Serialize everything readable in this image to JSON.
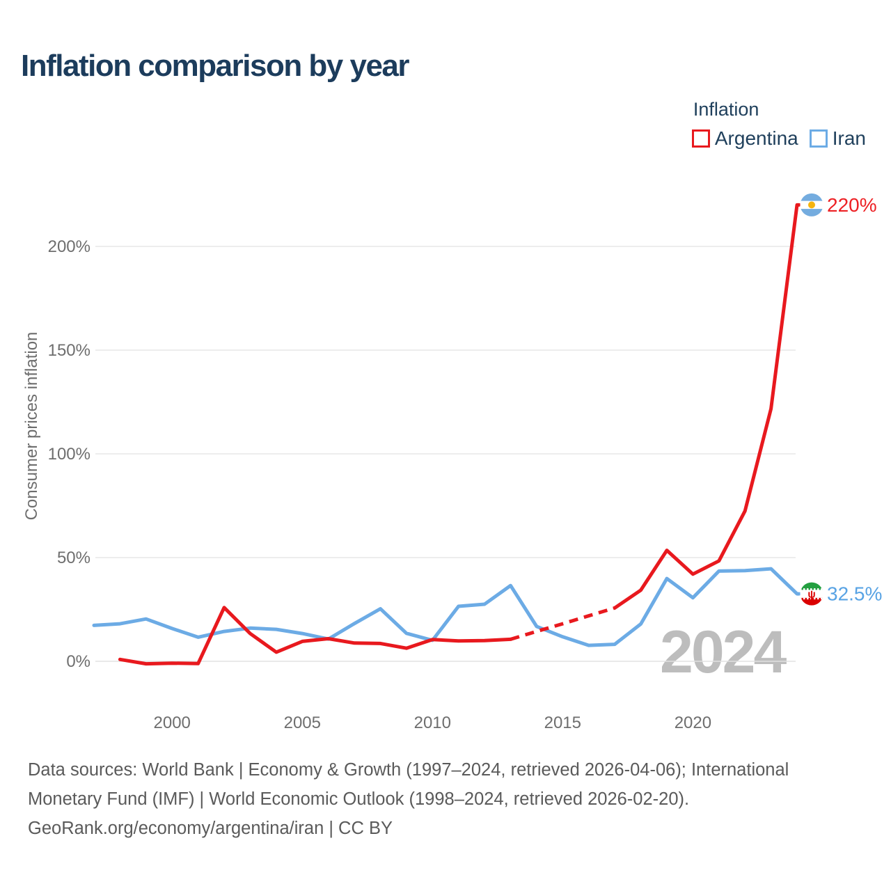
{
  "page": {
    "title": "Inflation comparison by year"
  },
  "legend": {
    "title": "Inflation",
    "items": [
      {
        "label": "Argentina",
        "color": "#e8191e"
      },
      {
        "label": "Iran",
        "color": "#6cabe5"
      }
    ]
  },
  "chart_data": {
    "type": "line",
    "title": "Inflation comparison by year",
    "ylabel": "Consumer prices inflation",
    "xlabel": "",
    "grid": true,
    "legend_position": "top-right",
    "year_watermark": "2024",
    "x": [
      1997,
      1998,
      1999,
      2000,
      2001,
      2002,
      2003,
      2004,
      2005,
      2006,
      2007,
      2008,
      2009,
      2010,
      2011,
      2012,
      2013,
      2014,
      2015,
      2016,
      2017,
      2018,
      2019,
      2020,
      2021,
      2022,
      2023,
      2024
    ],
    "series": [
      {
        "name": "Argentina",
        "color": "#e8191e",
        "label_color": "#ed2024",
        "end_label": "220%",
        "flag": "argentina",
        "dashed_year_range": [
          2013,
          2017
        ],
        "values": [
          null,
          0.9,
          -1.2,
          -0.9,
          -1.1,
          25.9,
          13.4,
          4.4,
          9.6,
          10.9,
          8.8,
          8.6,
          6.3,
          10.5,
          9.8,
          10.0,
          10.6,
          14.4,
          18.1,
          21.9,
          25.7,
          34.3,
          53.5,
          42.0,
          48.4,
          72.4,
          121.7,
          220.0
        ]
      },
      {
        "name": "Iran",
        "color": "#6cabe5",
        "label_color": "#58a3e4",
        "end_label": "32.5%",
        "flag": "iran",
        "values": [
          17.3,
          18.1,
          20.4,
          15.8,
          11.6,
          14.4,
          16.0,
          15.4,
          13.4,
          10.7,
          18.2,
          25.3,
          13.5,
          10.1,
          26.5,
          27.5,
          36.5,
          16.8,
          11.8,
          7.7,
          8.2,
          18.0,
          39.9,
          30.6,
          43.5,
          43.7,
          44.6,
          32.5
        ]
      }
    ],
    "y_ticks": [
      {
        "value": 0,
        "label": "0%"
      },
      {
        "value": 50,
        "label": "50%"
      },
      {
        "value": 100,
        "label": "100%"
      },
      {
        "value": 150,
        "label": "150%"
      },
      {
        "value": 200,
        "label": "200%"
      }
    ],
    "x_ticks": [
      2000,
      2005,
      2010,
      2015,
      2020
    ],
    "ylim": [
      -12,
      232
    ],
    "xlim": [
      1997,
      2024
    ]
  },
  "footer": {
    "lines": [
      "Data sources: World Bank | Economy & Growth (1997–2024, retrieved 2026-04-06); International",
      "Monetary Fund (IMF) | World Economic Outlook (1998–2024, retrieved 2026-02-20).",
      "GeoRank.org/economy/argentina/iran | CC BY"
    ]
  },
  "colors": {
    "title_text": "#1c3c5c",
    "axis_text": "#6e6e6e",
    "gridline": "#e7e7e7",
    "watermark": "#bdbdbd",
    "footer_text": "#5a5a5a",
    "argentina_flag_blue": "#74ACDF",
    "argentina_flag_sun": "#F6B40E",
    "iran_flag_green": "#239F40",
    "iran_flag_red": "#DA0000"
  }
}
